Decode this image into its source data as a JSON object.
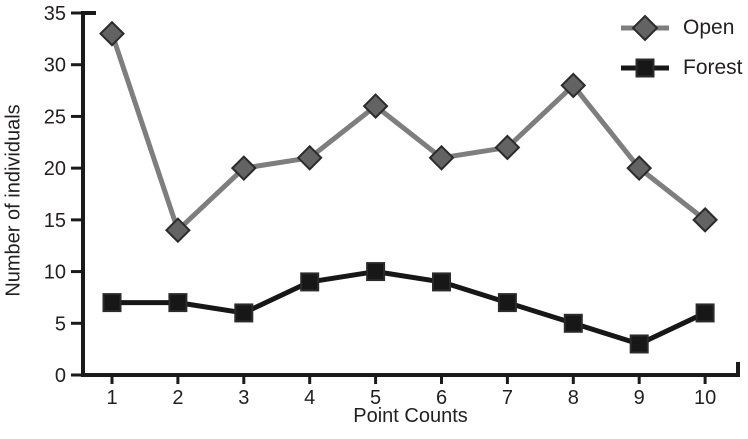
{
  "figure_title": "",
  "colors": {
    "background": "#ffffff",
    "axis": "#1a1a1a",
    "text": "#231f20",
    "open_line": "#7e7e7e",
    "open_marker_fill": "#636363",
    "open_marker_stroke": "#2b2b2b",
    "forest_line": "#171717",
    "forest_marker_fill": "#171717",
    "forest_marker_stroke": "#2b2b2b"
  },
  "chart_data": {
    "type": "line",
    "title": "",
    "xlabel": "Point Counts",
    "ylabel": "Number of individuals",
    "x": [
      1,
      2,
      3,
      4,
      5,
      6,
      7,
      8,
      9,
      10
    ],
    "x_tick_labels": [
      "1",
      "2",
      "3",
      "4",
      "5",
      "6",
      "7",
      "8",
      "9",
      "10"
    ],
    "y_ticks": [
      0,
      5,
      10,
      15,
      20,
      25,
      30,
      35
    ],
    "ylim": [
      0,
      35
    ],
    "xlim": [
      0.56,
      10.5
    ],
    "grid": false,
    "legend_position": "top-right",
    "series": [
      {
        "name": "Open",
        "marker": "diamond",
        "line_color": "#7e7e7e",
        "marker_fill": "#636363",
        "marker_stroke": "#2b2b2b",
        "values": [
          33,
          14,
          20,
          21,
          26,
          21,
          22,
          28,
          20,
          15
        ]
      },
      {
        "name": "Forest",
        "marker": "square",
        "line_color": "#171717",
        "marker_fill": "#171717",
        "marker_stroke": "#2b2b2b",
        "values": [
          7,
          7,
          6,
          9,
          10,
          9,
          7,
          5,
          3,
          6
        ]
      }
    ]
  }
}
